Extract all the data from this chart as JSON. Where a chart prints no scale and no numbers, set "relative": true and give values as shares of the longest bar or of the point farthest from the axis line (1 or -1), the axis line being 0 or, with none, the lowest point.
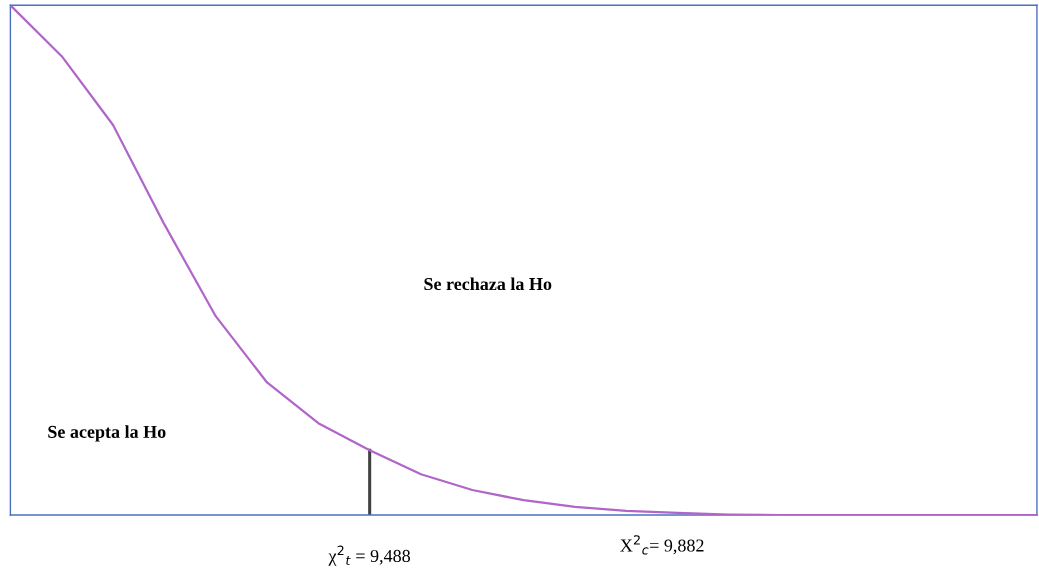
{
  "chart_data": {
    "type": "line",
    "relative": true,
    "categories": [
      null,
      null,
      null,
      null,
      null,
      null,
      null,
      null,
      null,
      null,
      null,
      null,
      null,
      null,
      null,
      null,
      null,
      null,
      null,
      null,
      null
    ],
    "series": [
      {
        "color": "#b065c8",
        "values": [
          1.0,
          0.9,
          0.765,
          0.57,
          0.39,
          0.26,
          0.18,
          0.127,
          0.08,
          0.049,
          0.029,
          0.016,
          0.008,
          0.004,
          0.001,
          0,
          0,
          0,
          0,
          0,
          0
        ]
      }
    ],
    "annotations": [
      "Se rechaza la Ho",
      "Se acepta la Ho",
      "X$^{2}$$_{c}$= 9,882",
      "χ$^{2}$$_{t}$ = 9,488"
    ],
    "grid": false
  }
}
